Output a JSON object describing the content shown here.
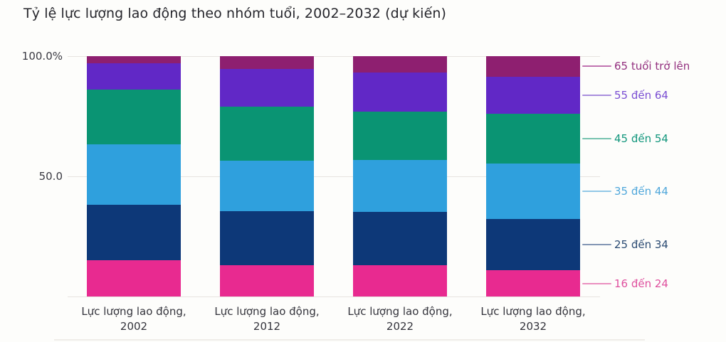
{
  "chart_data": {
    "type": "bar",
    "stacked": true,
    "title": "Tỷ lệ lực lượng lao động theo nhóm tuổi, 2002–2032 (dự kiến)",
    "grid": true,
    "legend_position": "right",
    "xlabel": "",
    "ylabel": "",
    "ylim": [
      0,
      100
    ],
    "categories": [
      {
        "label": "Lực lượng lao động,",
        "year": "2002"
      },
      {
        "label": "Lực lượng lao động,",
        "year": "2012"
      },
      {
        "label": "Lực lượng lao động,",
        "year": "2022"
      },
      {
        "label": "Lực lượng lao động,",
        "year": "2032"
      }
    ],
    "y_axis": {
      "ticks": [
        {
          "value": 100,
          "label": "100.0%"
        },
        {
          "value": 50,
          "label": "50.0"
        }
      ],
      "baseline_value": 0
    },
    "series": [
      {
        "name": "16 đến 24",
        "values": [
          15.2,
          13.1,
          13.0,
          10.8
        ],
        "color": "#E82A90",
        "label_color": "#DF4F9E",
        "line_color": "#EA8FBF"
      },
      {
        "name": "25 đến 34",
        "values": [
          23.1,
          22.3,
          22.2,
          21.4
        ],
        "color": "#0D3878",
        "label_color": "#2A4A72",
        "line_color": "#8396B4"
      },
      {
        "name": "35 đến 44",
        "values": [
          25.1,
          21.2,
          21.5,
          23.2
        ],
        "color": "#2FA0DD",
        "label_color": "#4FA7DB",
        "line_color": "#92C8E7"
      },
      {
        "name": "45 đến 54",
        "values": [
          22.6,
          22.4,
          20.1,
          20.7
        ],
        "color": "#0A9473",
        "label_color": "#11967C",
        "line_color": "#76C2AE"
      },
      {
        "name": "55 đến 64",
        "values": [
          11.0,
          15.8,
          16.5,
          15.4
        ],
        "color": "#6128C6",
        "label_color": "#7A4ED3",
        "line_color": "#A98EDD"
      },
      {
        "name": "65 tuổi trở lên",
        "values": [
          3.0,
          5.2,
          6.7,
          8.5
        ],
        "color": "#8E1F70",
        "label_color": "#93307F",
        "line_color": "#C073B0"
      }
    ]
  }
}
